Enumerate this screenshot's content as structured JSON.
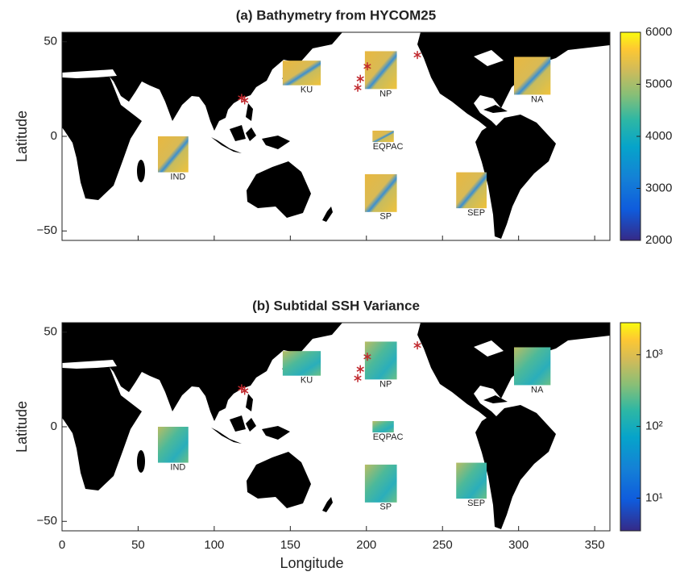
{
  "chart_data": [
    {
      "type": "map",
      "title": "(a) Bathymetry from HYCOM25",
      "ylabel": "Latitude",
      "xlim": [
        0,
        360
      ],
      "xticks": [
        0,
        50,
        100,
        150,
        200,
        250,
        300,
        350
      ],
      "ylim": [
        -55,
        55
      ],
      "yticks": [
        {
          "value": -50,
          "label": "−50"
        },
        0,
        50
      ],
      "regions": [
        {
          "label": "KU",
          "lon": [
            145,
            170
          ],
          "lat": [
            27,
            40
          ]
        },
        {
          "label": "NP",
          "lon": [
            199,
            220
          ],
          "lat": [
            25,
            45
          ]
        },
        {
          "label": "NA",
          "lon": [
            297,
            321
          ],
          "lat": [
            22,
            42
          ]
        },
        {
          "label": "IND",
          "lon": [
            63,
            83
          ],
          "lat": [
            -19,
            0
          ]
        },
        {
          "label": "EQPAC",
          "lon": [
            204,
            218
          ],
          "lat": [
            -3,
            3
          ]
        },
        {
          "label": "SP",
          "lon": [
            199,
            220
          ],
          "lat": [
            -40,
            -20
          ]
        },
        {
          "label": "SEP",
          "lon": [
            259,
            279
          ],
          "lat": [
            -38,
            -19
          ]
        }
      ],
      "stars": {
        "color": "#c0282d",
        "lon": [
          118,
          120,
          200.6,
          196,
          194.3,
          233.5
        ],
        "lat": [
          20.3,
          19,
          37,
          30.4,
          25.7,
          43
        ]
      },
      "colorbar": {
        "scale": "linear",
        "lim": [
          2000,
          6000
        ],
        "ticks": [
          2000,
          3000,
          4000,
          5000,
          6000
        ]
      }
    },
    {
      "type": "map",
      "title": "(b) Subtidal SSH Variance",
      "ylabel": "Latitude",
      "xlabel": "Longitude",
      "xlim": [
        0,
        360
      ],
      "xticks": [
        0,
        50,
        100,
        150,
        200,
        250,
        300,
        350
      ],
      "ylim": [
        -55,
        55
      ],
      "yticks": [
        {
          "value": -50,
          "label": "−50"
        },
        0,
        50
      ],
      "regions": [
        {
          "label": "KU",
          "lon": [
            145,
            170
          ],
          "lat": [
            27,
            40
          ]
        },
        {
          "label": "NP",
          "lon": [
            199,
            220
          ],
          "lat": [
            25,
            45
          ]
        },
        {
          "label": "NA",
          "lon": [
            297,
            321
          ],
          "lat": [
            22,
            42
          ]
        },
        {
          "label": "IND",
          "lon": [
            63,
            83
          ],
          "lat": [
            -19,
            0
          ]
        },
        {
          "label": "EQPAC",
          "lon": [
            204,
            218
          ],
          "lat": [
            -3,
            3
          ]
        },
        {
          "label": "SP",
          "lon": [
            199,
            220
          ],
          "lat": [
            -40,
            -20
          ]
        },
        {
          "label": "SEP",
          "lon": [
            259,
            279
          ],
          "lat": [
            -38,
            -19
          ]
        }
      ],
      "stars": {
        "color": "#c0282d",
        "lon": [
          118,
          120,
          200.6,
          196,
          194.3,
          233.5
        ],
        "lat": [
          20.3,
          19,
          37,
          30.4,
          25.7,
          43
        ]
      },
      "colorbar": {
        "scale": "log",
        "lim": [
          3.5,
          2800
        ],
        "ticks": [
          {
            "value": 10,
            "label": "10¹"
          },
          {
            "value": 100,
            "label": "10²"
          },
          {
            "value": 1000,
            "label": "10³"
          }
        ]
      }
    }
  ]
}
